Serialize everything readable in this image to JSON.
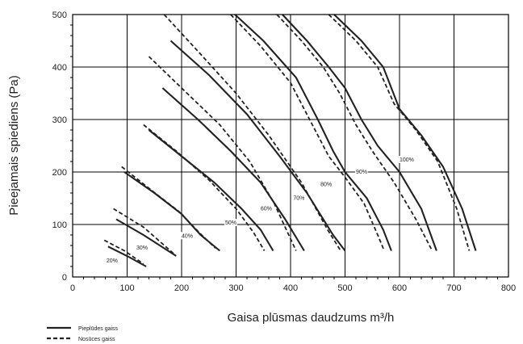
{
  "chart_data": {
    "type": "line",
    "xlabel": "Gaisa plūsmas daudzums m³/h",
    "ylabel": "Pieejamais spiediens (Pa)",
    "xlim": [
      0,
      800
    ],
    "ylim": [
      0,
      500
    ],
    "xticks": [
      0,
      100,
      200,
      300,
      400,
      500,
      600,
      700,
      800
    ],
    "yticks": [
      0,
      100,
      200,
      300,
      400,
      500
    ],
    "grid": true,
    "legend": [
      {
        "name": "Pieplūdes gaiss",
        "style": "solid"
      },
      {
        "name": "Nosūces gaiss",
        "style": "dashed"
      }
    ],
    "curves": [
      {
        "label": "20%",
        "label_at": [
          62,
          28
        ],
        "supply": [
          [
            65,
            58
          ],
          [
            100,
            40
          ],
          [
            135,
            20
          ]
        ],
        "exhaust": [
          [
            58,
            70
          ],
          [
            95,
            50
          ],
          [
            130,
            25
          ]
        ]
      },
      {
        "label": "30%",
        "label_at": [
          117,
          52
        ],
        "supply": [
          [
            80,
            110
          ],
          [
            130,
            80
          ],
          [
            190,
            40
          ]
        ],
        "exhaust": [
          [
            75,
            130
          ],
          [
            130,
            95
          ],
          [
            185,
            45
          ]
        ]
      },
      {
        "label": "40%",
        "label_at": [
          200,
          75
        ],
        "supply": [
          [
            95,
            200
          ],
          [
            150,
            160
          ],
          [
            200,
            120
          ],
          [
            235,
            80
          ],
          [
            270,
            50
          ]
        ],
        "exhaust": [
          [
            90,
            210
          ],
          [
            145,
            165
          ],
          [
            195,
            125
          ],
          [
            232,
            85
          ],
          [
            262,
            55
          ]
        ]
      },
      {
        "label": "50%",
        "label_at": [
          280,
          100
        ],
        "supply": [
          [
            140,
            280
          ],
          [
            200,
            230
          ],
          [
            260,
            180
          ],
          [
            310,
            130
          ],
          [
            345,
            90
          ],
          [
            368,
            50
          ]
        ],
        "exhaust": [
          [
            130,
            290
          ],
          [
            190,
            240
          ],
          [
            250,
            185
          ],
          [
            300,
            130
          ],
          [
            332,
            85
          ],
          [
            352,
            50
          ]
        ]
      },
      {
        "label": "60%",
        "label_at": [
          345,
          127
        ],
        "supply": [
          [
            165,
            360
          ],
          [
            230,
            300
          ],
          [
            290,
            240
          ],
          [
            345,
            180
          ],
          [
            390,
            110
          ],
          [
            425,
            50
          ]
        ],
        "exhaust": [
          [
            140,
            420
          ],
          [
            200,
            360
          ],
          [
            270,
            290
          ],
          [
            325,
            220
          ],
          [
            370,
            140
          ],
          [
            410,
            50
          ]
        ]
      },
      {
        "label": "70%",
        "label_at": [
          405,
          147
        ],
        "supply": [
          [
            180,
            450
          ],
          [
            250,
            385
          ],
          [
            320,
            310
          ],
          [
            380,
            230
          ],
          [
            430,
            160
          ],
          [
            478,
            80
          ],
          [
            500,
            50
          ]
        ],
        "exhaust": [
          [
            168,
            500
          ],
          [
            230,
            430
          ],
          [
            300,
            350
          ],
          [
            360,
            270
          ],
          [
            420,
            180
          ],
          [
            468,
            90
          ],
          [
            492,
            50
          ]
        ]
      },
      {
        "label": "80%",
        "label_at": [
          455,
          173
        ],
        "supply": [
          [
            298,
            500
          ],
          [
            350,
            450
          ],
          [
            410,
            380
          ],
          [
            450,
            300
          ],
          [
            478,
            240
          ],
          [
            500,
            200
          ],
          [
            540,
            150
          ],
          [
            570,
            90
          ],
          [
            585,
            50
          ]
        ],
        "exhaust": [
          [
            290,
            500
          ],
          [
            345,
            440
          ],
          [
            400,
            370
          ],
          [
            440,
            290
          ],
          [
            470,
            230
          ],
          [
            500,
            190
          ],
          [
            535,
            140
          ],
          [
            560,
            80
          ],
          [
            572,
            50
          ]
        ]
      },
      {
        "label": "90%",
        "label_at": [
          520,
          197
        ],
        "supply": [
          [
            385,
            500
          ],
          [
            430,
            450
          ],
          [
            470,
            400
          ],
          [
            500,
            360
          ],
          [
            530,
            300
          ],
          [
            560,
            250
          ],
          [
            600,
            200
          ],
          [
            640,
            130
          ],
          [
            668,
            50
          ]
        ],
        "exhaust": [
          [
            375,
            500
          ],
          [
            420,
            450
          ],
          [
            460,
            400
          ],
          [
            490,
            350
          ],
          [
            520,
            290
          ],
          [
            550,
            240
          ],
          [
            590,
            180
          ],
          [
            630,
            110
          ],
          [
            660,
            50
          ]
        ]
      },
      {
        "label": "100%",
        "label_at": [
          600,
          220
        ],
        "supply": [
          [
            480,
            500
          ],
          [
            530,
            450
          ],
          [
            570,
            400
          ],
          [
            600,
            320
          ],
          [
            640,
            270
          ],
          [
            680,
            210
          ],
          [
            715,
            130
          ],
          [
            740,
            50
          ]
        ],
        "exhaust": [
          [
            470,
            500
          ],
          [
            520,
            450
          ],
          [
            560,
            400
          ],
          [
            590,
            330
          ],
          [
            630,
            280
          ],
          [
            670,
            220
          ],
          [
            705,
            130
          ],
          [
            728,
            50
          ]
        ]
      }
    ]
  },
  "legend_labels": {
    "supply": "Pieplūdes gaiss",
    "exhaust": "Nosūces gaiss"
  }
}
